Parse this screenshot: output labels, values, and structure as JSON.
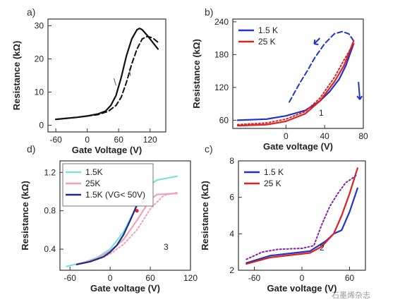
{
  "watermark": "石墨烯杂志",
  "chart_data": [
    {
      "panel": "a)",
      "type": "line",
      "xlabel": "Gate Voltage (V)",
      "ylabel": "Resistance (kΩ)",
      "xlim": [
        -75,
        150
      ],
      "ylim": [
        -2,
        32
      ],
      "xticks": [
        -60,
        0,
        60,
        120
      ],
      "yticks": [
        0,
        10,
        20,
        30
      ],
      "series": [
        {
          "style": "solid",
          "color": "#111111",
          "x": [
            -60,
            -20,
            0,
            20,
            35,
            45,
            55,
            65,
            75,
            85,
            95,
            100,
            105,
            115,
            125,
            135
          ],
          "y": [
            1.8,
            2.4,
            2.8,
            3.4,
            4.3,
            6,
            9,
            14.5,
            21,
            26,
            28.8,
            29.2,
            28.8,
            27,
            25,
            23
          ]
        },
        {
          "style": "dashed",
          "color": "#111111",
          "x": [
            -60,
            -20,
            0,
            20,
            40,
            55,
            65,
            75,
            85,
            95,
            105,
            115,
            125,
            135
          ],
          "y": [
            1.8,
            2.4,
            2.8,
            3.2,
            4.2,
            6,
            8.5,
            13,
            18.5,
            23,
            26,
            26.8,
            26.3,
            25
          ]
        }
      ],
      "annotations": []
    },
    {
      "panel": "b)",
      "type": "line",
      "xlabel": "Gate voltage (V)",
      "ylabel": "Resistance (kΩ)",
      "xlim": [
        -55,
        80
      ],
      "ylim": [
        45,
        245
      ],
      "xticks": [
        0,
        40,
        80
      ],
      "yticks": [
        60,
        120,
        180,
        240
      ],
      "legend": [
        "1.5 K",
        "25 K"
      ],
      "series": [
        {
          "name": "1.5 K",
          "style": "solid",
          "color": "#2233cc",
          "x": [
            -50,
            -20,
            0,
            20,
            35,
            45,
            55,
            62,
            70
          ],
          "y": [
            60,
            62,
            68,
            78,
            95,
            112,
            135,
            160,
            200
          ]
        },
        {
          "name": "1.5 K",
          "style": "dashed",
          "color": "#2233cc",
          "x": [
            70,
            65,
            58,
            50,
            40,
            30,
            22,
            15,
            8,
            3
          ],
          "y": [
            205,
            218,
            222,
            218,
            200,
            175,
            150,
            130,
            108,
            92
          ]
        },
        {
          "name": "25 K",
          "style": "solid",
          "color": "#dd2222",
          "x": [
            -50,
            -20,
            0,
            20,
            35,
            50,
            60,
            70
          ],
          "y": [
            50,
            52,
            58,
            72,
            95,
            130,
            160,
            205
          ]
        },
        {
          "name": "25 K",
          "style": "dotted",
          "color": "#dd2222",
          "x": [
            -50,
            -20,
            0,
            20,
            35,
            50,
            60,
            70
          ],
          "y": [
            52,
            55,
            62,
            76,
            100,
            138,
            170,
            200
          ]
        }
      ],
      "annotations": [
        "1"
      ]
    },
    {
      "panel": "d)",
      "type": "line",
      "xlabel": "Gate voltage (V)",
      "ylabel": "Resistance (kΩ)",
      "xlim": [
        -75,
        120
      ],
      "ylim": [
        0.18,
        1.32
      ],
      "xticks": [
        -60,
        0,
        60,
        120
      ],
      "yticks": [
        0.4,
        0.8,
        1.2
      ],
      "legend": [
        "1.5K",
        "25K",
        "1.5K (Vₐ < 50V)"
      ],
      "legend_labels": [
        "1.5K",
        "25K",
        "1.5K (VG< 50V)"
      ],
      "series": [
        {
          "name": "1.5K",
          "style": "solid",
          "color": "#7fe0e0",
          "x": [
            -65,
            -40,
            -20,
            0,
            20,
            40,
            55,
            70,
            100
          ],
          "y": [
            0.22,
            0.26,
            0.31,
            0.4,
            0.58,
            0.85,
            1.05,
            1.12,
            1.16
          ]
        },
        {
          "name": "25K",
          "style": "solid",
          "color": "#f4a0b0",
          "x": [
            -50,
            -20,
            0,
            20,
            40,
            60,
            70,
            100
          ],
          "y": [
            0.24,
            0.3,
            0.38,
            0.5,
            0.7,
            0.92,
            0.97,
            0.98
          ]
        },
        {
          "name": "25K",
          "style": "dotted",
          "color": "#f4a0b0",
          "x": [
            -50,
            -20,
            0,
            20,
            40,
            60,
            80,
            100
          ],
          "y": [
            0.24,
            0.29,
            0.35,
            0.45,
            0.6,
            0.82,
            0.96,
            0.99
          ]
        },
        {
          "name": "1.5K (VG< 50V)",
          "style": "solid",
          "color": "#1a2a8a",
          "x": [
            -50,
            -30,
            -10,
            0,
            10,
            20,
            30,
            40,
            50
          ],
          "y": [
            0.24,
            0.27,
            0.32,
            0.37,
            0.44,
            0.55,
            0.7,
            0.86,
            1.02
          ]
        }
      ],
      "annotations": [
        "3"
      ]
    },
    {
      "panel": "c)",
      "type": "line",
      "xlabel": "Gate voltage (V)",
      "ylabel": "Resistance (kΩ)",
      "xlim": [
        -80,
        80
      ],
      "ylim": [
        2,
        8
      ],
      "xticks": [
        -60,
        0,
        60
      ],
      "yticks": [
        2,
        4,
        6,
        8
      ],
      "legend": [
        "1.5 K",
        "25 K"
      ],
      "series": [
        {
          "name": "1.5 K",
          "style": "solid",
          "color": "#2233cc",
          "x": [
            -70,
            -40,
            -10,
            10,
            30,
            40,
            50,
            60,
            70
          ],
          "y": [
            2.4,
            2.8,
            2.95,
            3.05,
            3.6,
            4.0,
            4.2,
            5.2,
            6.5
          ]
        },
        {
          "name": "25 K",
          "style": "solid",
          "color": "#dd2222",
          "x": [
            -70,
            -40,
            -10,
            10,
            25,
            40,
            50,
            60,
            70
          ],
          "y": [
            2.35,
            2.7,
            2.85,
            2.95,
            3.3,
            4.0,
            5.0,
            6.2,
            7.6
          ]
        },
        {
          "name": "25 K",
          "style": "dotted",
          "color": "#8822aa",
          "x": [
            -70,
            -50,
            -30,
            0,
            15,
            25,
            35,
            45,
            55,
            62,
            68
          ],
          "y": [
            2.6,
            3.0,
            3.15,
            3.2,
            3.35,
            4.5,
            5.5,
            6.2,
            6.8,
            7.0,
            7.2
          ]
        }
      ],
      "annotations": [
        "2"
      ]
    }
  ]
}
